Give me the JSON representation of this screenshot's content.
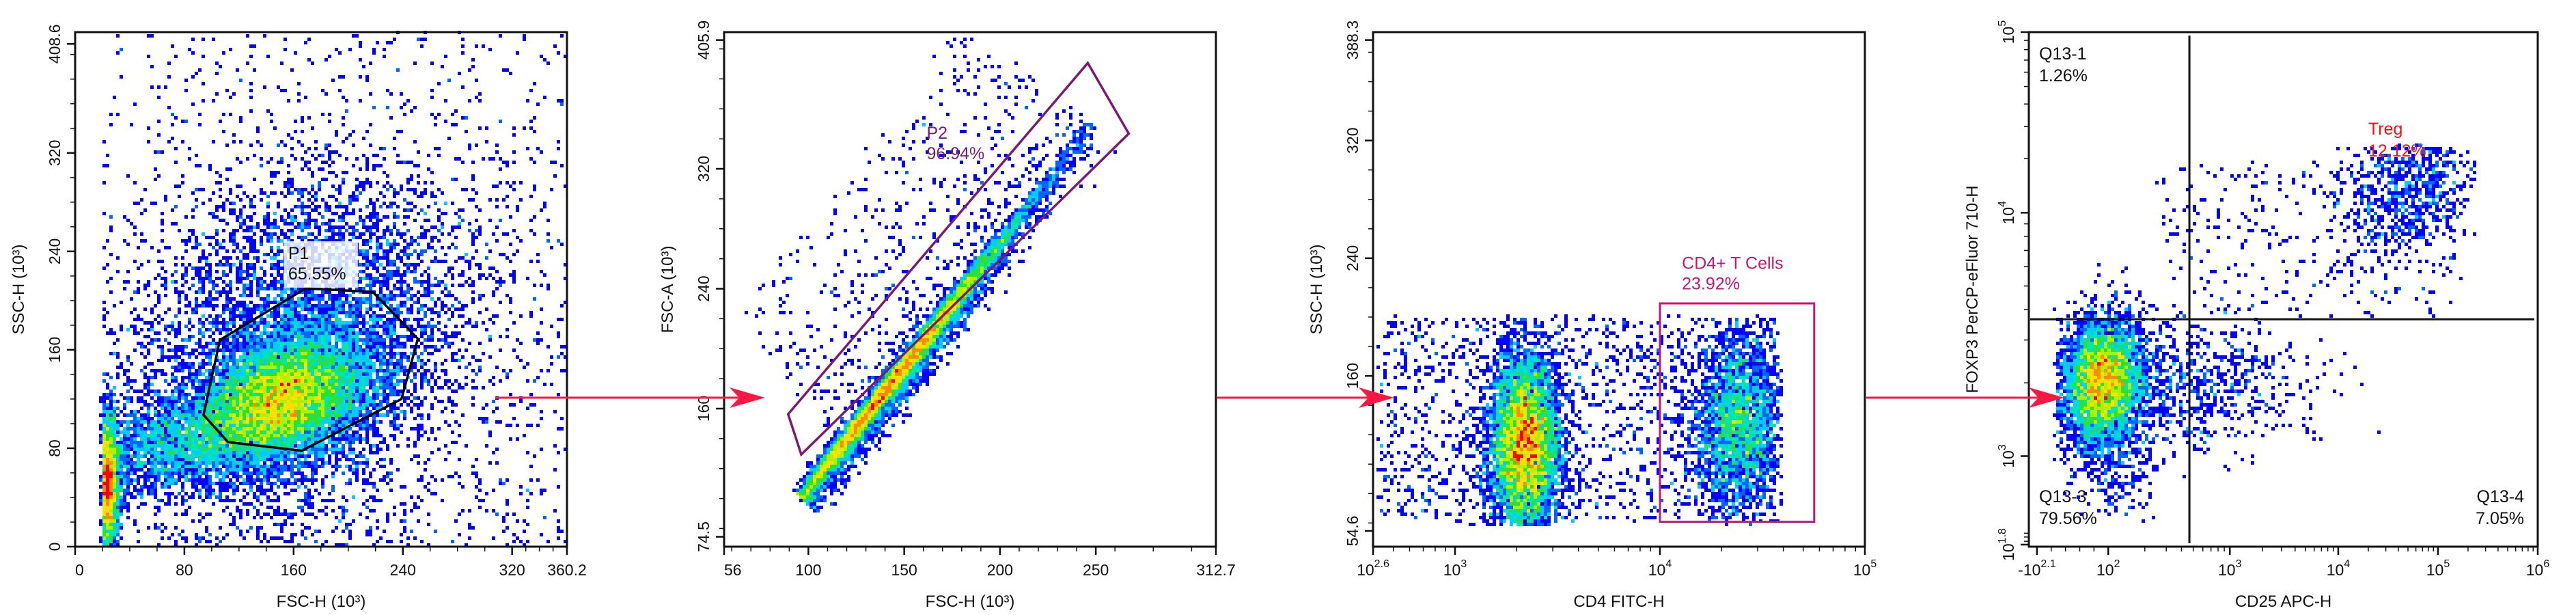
{
  "figure": {
    "arrow_color": "#ff1744",
    "density_palette": [
      "#0000ff",
      "#0066ff",
      "#00ccff",
      "#00e6b0",
      "#30e030",
      "#b0f000",
      "#ffe000",
      "#ff8c00",
      "#ff0000"
    ]
  },
  "chart_data": [
    {
      "type": "scatter",
      "subtype": "flow-cytometry-density-plot",
      "xlabel": "FSC-H  (10³)",
      "ylabel": "SSC-H  (10³)",
      "x_scale": "linear",
      "y_scale": "linear",
      "xlim": [
        0,
        360.2
      ],
      "ylim": [
        0,
        418.2
      ],
      "x_ticks": [
        {
          "label": "0",
          "value": 0
        },
        {
          "label": "80",
          "value": 80
        },
        {
          "label": "160",
          "value": 160
        },
        {
          "label": "240",
          "value": 240
        },
        {
          "label": "320",
          "value": 320
        },
        {
          "label": "360.2",
          "value": 360.2
        }
      ],
      "y_ticks": [
        {
          "label": "0",
          "value": 0
        },
        {
          "label": "80",
          "value": 80
        },
        {
          "label": "160",
          "value": 160
        },
        {
          "label": "240",
          "value": 240
        },
        {
          "label": "320",
          "value": 320
        },
        {
          "label": "408.6",
          "value": 408.6
        }
      ],
      "density_peaks": [
        {
          "x": 150,
          "y": 120
        },
        {
          "x": 23,
          "y": 50
        }
      ],
      "gates": [
        {
          "type": "polygon",
          "name": "P1",
          "percent": "65.55%",
          "color": "#000000",
          "vertices": [
            [
              106,
              168
            ],
            [
              169,
              210
            ],
            [
              218,
              207
            ],
            [
              251,
              169
            ],
            [
              239,
              120
            ],
            [
              166,
              78
            ],
            [
              112,
              85
            ],
            [
              94,
              107
            ]
          ],
          "label_anchor": [
            156,
            246
          ]
        }
      ]
    },
    {
      "type": "scatter",
      "subtype": "flow-cytometry-density-plot",
      "xlabel": "FSC-H  (10³)",
      "ylabel": "FSC-A  (10³)",
      "x_scale": "linear",
      "y_scale": "linear",
      "xlim": [
        56,
        312.7
      ],
      "ylim": [
        67.9,
        411.2
      ],
      "x_ticks": [
        {
          "label": "56",
          "value": 56
        },
        {
          "label": "100",
          "value": 100
        },
        {
          "label": "150",
          "value": 150
        },
        {
          "label": "200",
          "value": 200
        },
        {
          "label": "250",
          "value": 250
        },
        {
          "label": "312.7",
          "value": 312.7
        }
      ],
      "y_ticks": [
        {
          "label": "74.5",
          "value": 74.5
        },
        {
          "label": "160",
          "value": 160
        },
        {
          "label": "240",
          "value": 240
        },
        {
          "label": "320",
          "value": 320
        },
        {
          "label": "405.9",
          "value": 405.9
        }
      ],
      "density_peaks": [
        {
          "x": 140,
          "y": 195
        }
      ],
      "gates": [
        {
          "type": "polygon",
          "name": "P2",
          "percent": "96.94%",
          "color": "#7b1a73",
          "vertices": [
            [
              89.4,
              156.3
            ],
            [
              245.8,
              390.6
            ],
            [
              267.2,
              343.5
            ],
            [
              96.3,
              129.4
            ]
          ],
          "label_anchor": [
            161.7,
            350
          ]
        }
      ]
    },
    {
      "type": "scatter",
      "subtype": "flow-cytometry-density-plot",
      "xlabel": "CD4 FITC-H",
      "ylabel": "SSC-H  (10³)",
      "x_scale": "log",
      "y_scale": "linear",
      "xlim": [
        398.1,
        100000
      ],
      "ylim": [
        43.9,
        393.7
      ],
      "x_ticks": [
        {
          "base": "10",
          "exp": "2.6",
          "value": 398.1
        },
        {
          "base": "10",
          "exp": "3",
          "value": 1000
        },
        {
          "base": "10",
          "exp": "4",
          "value": 10000
        },
        {
          "base": "10",
          "exp": "5",
          "value": 100000
        }
      ],
      "y_ticks": [
        {
          "label": "54.6",
          "value": 54.6
        },
        {
          "label": "160",
          "value": 160
        },
        {
          "label": "240",
          "value": 240
        },
        {
          "label": "320",
          "value": 320
        },
        {
          "label": "388.3",
          "value": 388.3
        }
      ],
      "density_peaks": [
        {
          "x": 2180,
          "y": 112
        },
        {
          "x": 24000,
          "y": 125
        }
      ],
      "gates": [
        {
          "type": "rectangle",
          "name": "CD4+ T Cells",
          "percent": "23.92%",
          "color": "#c0187a",
          "vertices": [
            [
              10000,
              60.8
            ],
            [
              56600,
              60.8
            ],
            [
              56600,
              209.3
            ],
            [
              10000,
              209.3
            ]
          ],
          "label_anchor": [
            12800,
            243
          ]
        }
      ]
    },
    {
      "type": "scatter",
      "subtype": "flow-cytometry-quadrant-plot",
      "xlabel": "CD25 APC-H",
      "ylabel": "FOXP3  PerCP-eFluor 710-H",
      "x_scale": "biexponential",
      "y_scale": "biexponential",
      "xlim": [
        -125.9,
        1000000
      ],
      "ylim": [
        63.1,
        100000
      ],
      "x_ticks": [
        {
          "base": "-10",
          "exp": "2.1",
          "value": -125.9
        },
        {
          "base": "10",
          "exp": "2",
          "value": 100
        },
        {
          "base": "10",
          "exp": "3",
          "value": 1000
        },
        {
          "base": "10",
          "exp": "4",
          "value": 10000
        },
        {
          "base": "10",
          "exp": "5",
          "value": 100000
        },
        {
          "base": "10",
          "exp": "6",
          "value": 1000000
        }
      ],
      "y_ticks": [
        {
          "base": "10",
          "exp": "1.8",
          "value": 63.1
        },
        {
          "base": "10",
          "exp": "3",
          "value": 1000
        },
        {
          "base": "10",
          "exp": "4",
          "value": 10000
        },
        {
          "base": "10",
          "exp": "5",
          "value": 100000
        }
      ],
      "density_peaks": [
        {
          "x": 76,
          "y": 2000
        },
        {
          "x": 54000,
          "y": 13400
        }
      ],
      "quadrant_split": {
        "x": 465,
        "y": 3650
      },
      "quadrants": [
        {
          "name": "Q13-1",
          "percent": "1.26%",
          "position": "top-left",
          "color": "#111111"
        },
        {
          "name": "Treg",
          "percent": "12.12%",
          "position": "top-right",
          "color": "#ff1010"
        },
        {
          "name": "Q13-3",
          "percent": "79.56%",
          "position": "bottom-left",
          "color": "#111111"
        },
        {
          "name": "Q13-4",
          "percent": "7.05%",
          "position": "bottom-right",
          "color": "#111111"
        }
      ]
    }
  ]
}
